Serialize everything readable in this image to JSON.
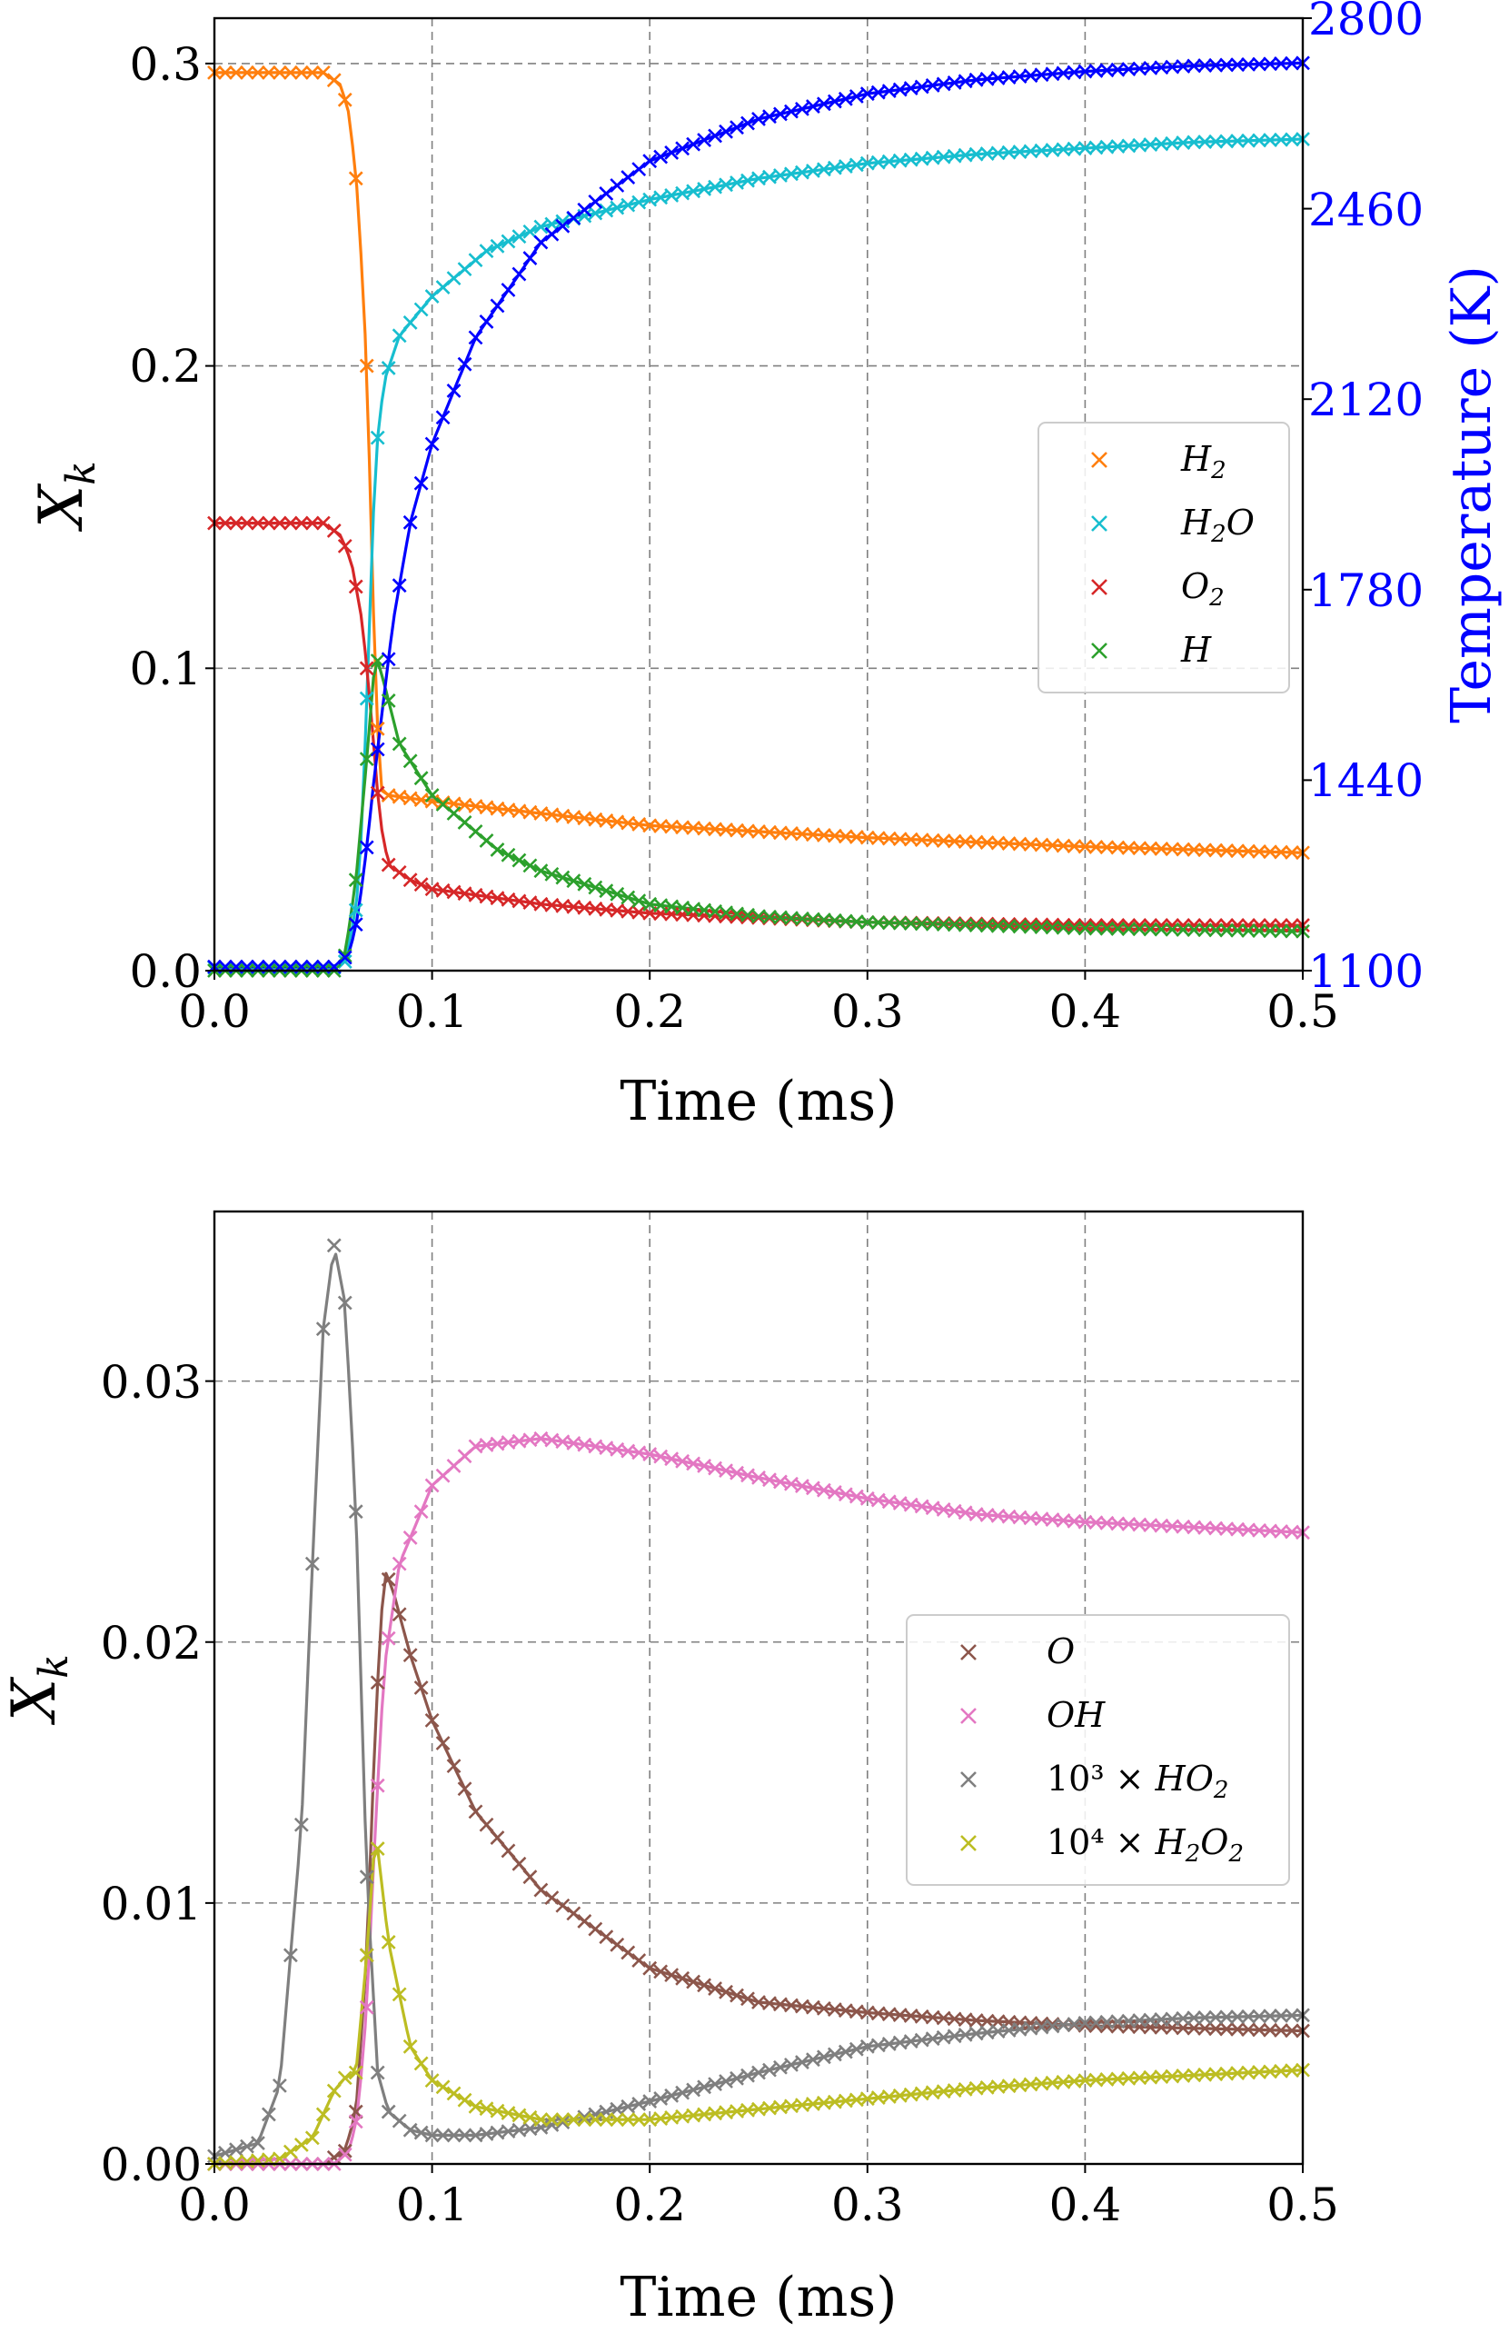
{
  "chart_data": [
    {
      "type": "line",
      "panel": "top",
      "xlabel": "Time (ms)",
      "ylabel": "X_k",
      "ylabel_main": "X",
      "ylabel_sub": "k",
      "y2label": "Temperature (K)",
      "xlim": [
        0,
        0.5
      ],
      "ylim": [
        0,
        0.315
      ],
      "y2lim": [
        1100,
        2800
      ],
      "xticks": [
        0.0,
        0.1,
        0.2,
        0.3,
        0.4,
        0.5
      ],
      "xtick_labels": [
        "0.0",
        "0.1",
        "0.2",
        "0.3",
        "0.4",
        "0.5"
      ],
      "yticks": [
        0.0,
        0.1,
        0.2,
        0.3
      ],
      "ytick_labels": [
        "0.0",
        "0.1",
        "0.2",
        "0.3"
      ],
      "y2ticks": [
        1100,
        1440,
        1780,
        2120,
        2460,
        2800
      ],
      "y2tick_labels": [
        "1100",
        "1440",
        "1780",
        "2120",
        "2460",
        "2800"
      ],
      "grid": true,
      "legend_position": "center-right",
      "markers": "x markers overlay solid lines",
      "series": [
        {
          "name": "H2",
          "label_main": "H",
          "label_sub": "2",
          "label_tail": "",
          "color": "#ff7f0e",
          "axis": "left",
          "x": [
            0,
            0.03,
            0.05,
            0.058,
            0.062,
            0.066,
            0.07,
            0.073,
            0.076,
            0.08,
            0.1,
            0.15,
            0.2,
            0.3,
            0.4,
            0.5
          ],
          "values": [
            0.297,
            0.297,
            0.297,
            0.293,
            0.283,
            0.255,
            0.2,
            0.12,
            0.06,
            0.058,
            0.056,
            0.052,
            0.048,
            0.044,
            0.041,
            0.039
          ]
        },
        {
          "name": "H2O",
          "label_main": "H",
          "label_sub": "2",
          "label_tail": "O",
          "color": "#17becf",
          "axis": "left",
          "x": [
            0,
            0.055,
            0.06,
            0.065,
            0.068,
            0.071,
            0.074,
            0.078,
            0.085,
            0.1,
            0.125,
            0.15,
            0.2,
            0.25,
            0.3,
            0.35,
            0.4,
            0.45,
            0.5
          ],
          "values": [
            0.001,
            0.001,
            0.003,
            0.02,
            0.05,
            0.11,
            0.17,
            0.195,
            0.21,
            0.223,
            0.238,
            0.246,
            0.255,
            0.262,
            0.267,
            0.27,
            0.272,
            0.274,
            0.275
          ]
        },
        {
          "name": "O2",
          "label_main": "O",
          "label_sub": "2",
          "label_tail": "",
          "color": "#d62728",
          "axis": "left",
          "x": [
            0,
            0.03,
            0.05,
            0.058,
            0.063,
            0.068,
            0.072,
            0.076,
            0.08,
            0.09,
            0.1,
            0.15,
            0.2,
            0.3,
            0.4,
            0.5
          ],
          "values": [
            0.148,
            0.148,
            0.148,
            0.144,
            0.135,
            0.115,
            0.085,
            0.05,
            0.035,
            0.03,
            0.027,
            0.022,
            0.019,
            0.016,
            0.015,
            0.015
          ]
        },
        {
          "name": "H",
          "label_main": "H",
          "label_sub": "",
          "label_tail": "",
          "color": "#2ca02c",
          "axis": "left",
          "x": [
            0,
            0.055,
            0.06,
            0.065,
            0.07,
            0.074,
            0.078,
            0.085,
            0.1,
            0.13,
            0.15,
            0.2,
            0.25,
            0.3,
            0.4,
            0.5
          ],
          "values": [
            0,
            0,
            0.005,
            0.03,
            0.07,
            0.105,
            0.095,
            0.075,
            0.058,
            0.04,
            0.033,
            0.022,
            0.018,
            0.016,
            0.014,
            0.013
          ]
        },
        {
          "name": "Temperature",
          "color": "#0000ff",
          "axis": "right",
          "legend": false,
          "x": [
            0,
            0.055,
            0.062,
            0.066,
            0.07,
            0.073,
            0.077,
            0.082,
            0.09,
            0.1,
            0.12,
            0.15,
            0.2,
            0.25,
            0.3,
            0.35,
            0.4,
            0.45,
            0.5
          ],
          "values": [
            1107,
            1107,
            1130,
            1200,
            1320,
            1430,
            1560,
            1720,
            1900,
            2040,
            2230,
            2400,
            2545,
            2620,
            2665,
            2690,
            2705,
            2715,
            2720
          ]
        }
      ]
    },
    {
      "type": "line",
      "panel": "bottom",
      "xlabel": "Time (ms)",
      "ylabel": "X_k",
      "ylabel_main": "X",
      "ylabel_sub": "k",
      "xlim": [
        0,
        0.5
      ],
      "ylim": [
        0,
        0.0365
      ],
      "xticks": [
        0.0,
        0.1,
        0.2,
        0.3,
        0.4,
        0.5
      ],
      "xtick_labels": [
        "0.0",
        "0.1",
        "0.2",
        "0.3",
        "0.4",
        "0.5"
      ],
      "yticks": [
        0.0,
        0.01,
        0.02,
        0.03
      ],
      "ytick_labels": [
        "0.00",
        "0.01",
        "0.02",
        "0.03"
      ],
      "grid": true,
      "legend_position": "center-right",
      "markers": "x markers overlay solid lines",
      "series": [
        {
          "name": "O",
          "label_pre": "",
          "label_main": "O",
          "label_sub": "",
          "label_tail": "",
          "label_sub2": "",
          "color": "#8c564b",
          "x": [
            0,
            0.05,
            0.06,
            0.065,
            0.07,
            0.074,
            0.078,
            0.082,
            0.09,
            0.1,
            0.12,
            0.15,
            0.2,
            0.25,
            0.3,
            0.35,
            0.4,
            0.45,
            0.5
          ],
          "values": [
            0,
            0,
            0.0005,
            0.002,
            0.008,
            0.017,
            0.0228,
            0.022,
            0.0195,
            0.017,
            0.0135,
            0.0105,
            0.0075,
            0.0062,
            0.0058,
            0.0055,
            0.0053,
            0.0052,
            0.0051
          ]
        },
        {
          "name": "OH",
          "label_pre": "",
          "label_main": "OH",
          "label_sub": "",
          "label_tail": "",
          "label_sub2": "",
          "color": "#e377c2",
          "x": [
            0,
            0.055,
            0.062,
            0.066,
            0.07,
            0.074,
            0.078,
            0.085,
            0.1,
            0.12,
            0.15,
            0.2,
            0.25,
            0.3,
            0.35,
            0.4,
            0.45,
            0.5
          ],
          "values": [
            0,
            0,
            0.0005,
            0.002,
            0.006,
            0.013,
            0.019,
            0.023,
            0.026,
            0.0275,
            0.0278,
            0.0272,
            0.0263,
            0.0255,
            0.0249,
            0.0246,
            0.0244,
            0.0242
          ]
        },
        {
          "name": "10^3 x HO2",
          "label_pre": "10³ × ",
          "label_main": "HO",
          "label_sub": "2",
          "label_tail": "",
          "label_sub2": "",
          "color": "#7f7f7f",
          "x": [
            0,
            0.02,
            0.03,
            0.04,
            0.045,
            0.05,
            0.055,
            0.06,
            0.065,
            0.07,
            0.075,
            0.08,
            0.09,
            0.1,
            0.12,
            0.15,
            0.2,
            0.25,
            0.3,
            0.35,
            0.4,
            0.45,
            0.5
          ],
          "values": [
            0.0003,
            0.0008,
            0.003,
            0.013,
            0.023,
            0.032,
            0.0352,
            0.033,
            0.025,
            0.011,
            0.0035,
            0.002,
            0.0013,
            0.0011,
            0.0011,
            0.0014,
            0.0024,
            0.0035,
            0.0045,
            0.005,
            0.0054,
            0.0056,
            0.0057
          ]
        },
        {
          "name": "10^4 x H2O2",
          "label_pre": "10⁴ × ",
          "label_main": "H",
          "label_sub": "2",
          "label_tail": "O",
          "label_sub2": "2",
          "color": "#bcbd22",
          "x": [
            0,
            0.03,
            0.045,
            0.055,
            0.06,
            0.065,
            0.07,
            0.074,
            0.08,
            0.09,
            0.1,
            0.12,
            0.15,
            0.2,
            0.25,
            0.3,
            0.35,
            0.4,
            0.45,
            0.5
          ],
          "values": [
            0,
            0.0002,
            0.001,
            0.0028,
            0.0033,
            0.0035,
            0.008,
            0.0128,
            0.0085,
            0.0045,
            0.0032,
            0.0022,
            0.0017,
            0.0017,
            0.0021,
            0.0025,
            0.0029,
            0.0032,
            0.0034,
            0.0036
          ]
        }
      ]
    }
  ]
}
